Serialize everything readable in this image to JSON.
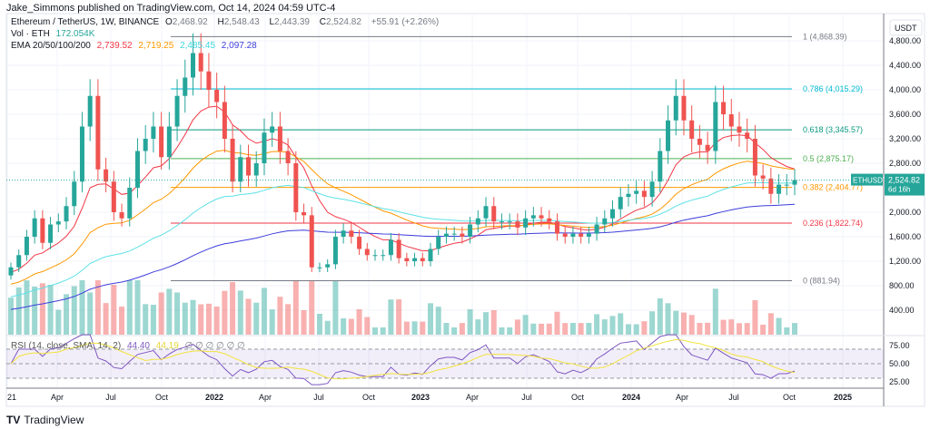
{
  "header": {
    "published": "Jake_Simmons published on TradingView.com, Oct 14, 2024 04:59 UTC-4"
  },
  "legend": {
    "symbol": "Ethereum / TetherUS, 1W, BINANCE",
    "o_label": "O",
    "o": "2,468.92",
    "h_label": "H",
    "h": "2,548.43",
    "l_label": "L",
    "l": "2,443.39",
    "c_label": "C",
    "c": "2,524.82",
    "change": "+55.91 (+2.26%)",
    "vol_label": "Vol · ETH",
    "vol": "172.054K",
    "ema_label": "EMA 20/50/100/200",
    "ema20": "2,739.52",
    "ema50": "2,719.25",
    "ema100": "2,485.45",
    "ema200": "2,097.28"
  },
  "rsi_legend": {
    "label": "RSI (14, close, SMA, 14, 2)",
    "rsi": "44.40",
    "sma": "44.19",
    "na": "∅ ∅ ∅ ∅ ∅ ∅"
  },
  "price_tag": {
    "symbol": "ETHUSDT",
    "price": "2,524.82",
    "countdown": "6d 16h"
  },
  "footer": {
    "brand": "TradingView"
  },
  "colors": {
    "up": "#26a69a",
    "down": "#ef5350",
    "ema20": "#f23645",
    "ema50": "#ff9800",
    "ema100": "#5ce1e6",
    "ema200": "#3d3ddb",
    "rsi": "#7e57c2",
    "rsi_sma": "#f2e33c"
  },
  "chart_data": {
    "type": "candlestick",
    "currency": "USDT",
    "ylim": [
      0,
      5000
    ],
    "y_ticks": [
      "4,800.00",
      "4,400.00",
      "4,000.00",
      "3,600.00",
      "3,200.00",
      "2,800.00",
      "2,000.00",
      "1,600.00",
      "1,200.00",
      "800.00",
      "400.00"
    ],
    "y_tick_values": [
      4800,
      4400,
      4000,
      3600,
      3200,
      2800,
      2000,
      1600,
      1200,
      800,
      400
    ],
    "x_ticks": [
      "21",
      "Apr",
      "Jul",
      "Oct",
      "2022",
      "Apr",
      "Jul",
      "Oct",
      "2023",
      "Apr",
      "Jul",
      "Oct",
      "2024",
      "Apr",
      "Jul",
      "Oct",
      "2025"
    ],
    "rsi_ticks": [
      "75.00",
      "50.00",
      "25.00"
    ],
    "rsi_tick_values": [
      75,
      50,
      25
    ],
    "closes": [
      1100,
      1300,
      1600,
      1900,
      1500,
      1800,
      1850,
      2100,
      2500,
      3400,
      3900,
      2700,
      2500,
      2000,
      1900,
      2400,
      3000,
      3200,
      3400,
      2900,
      3400,
      3900,
      4200,
      4600,
      4300,
      4000,
      3800,
      3200,
      2500,
      2900,
      2600,
      2800,
      3300,
      3400,
      3000,
      2800,
      2000,
      1950,
      1100,
      1100,
      1150,
      1600,
      1700,
      1600,
      1400,
      1300,
      1300,
      1300,
      1550,
      1250,
      1200,
      1250,
      1200,
      1400,
      1600,
      1650,
      1650,
      1600,
      1800,
      1900,
      2100,
      1850,
      1850,
      1850,
      1750,
      1900,
      1950,
      1900,
      1850,
      1650,
      1600,
      1650,
      1600,
      1650,
      1800,
      1900,
      2050,
      2250,
      2300,
      2350,
      2250,
      2500,
      3000,
      3500,
      3900,
      3500,
      3200,
      3100,
      3000,
      3800,
      3600,
      3400,
      3300,
      3200,
      2600,
      2550,
      2300,
      2450,
      2450,
      2524.82
    ],
    "fib_levels": [
      {
        "level": "1",
        "value": 4868.39,
        "label": "1 (4,868.39)",
        "color": "#787b86"
      },
      {
        "level": "0.786",
        "value": 4015.29,
        "label": "0.786 (4,015.29)",
        "color": "#00bcd4"
      },
      {
        "level": "0.618",
        "value": 3345.57,
        "label": "0.618 (3,345.57)",
        "color": "#089981"
      },
      {
        "level": "0.5",
        "value": 2875.17,
        "label": "0.5 (2,875.17)",
        "color": "#4caf50"
      },
      {
        "level": "0.382",
        "value": 2404.77,
        "label": "0.382 (2,404.77)",
        "color": "#ff9800"
      },
      {
        "level": "0.236",
        "value": 1822.74,
        "label": "0.236 (1,822.74)",
        "color": "#f23645"
      },
      {
        "level": "0",
        "value": 881.94,
        "label": "0 (881.94)",
        "color": "#787b86"
      }
    ]
  }
}
